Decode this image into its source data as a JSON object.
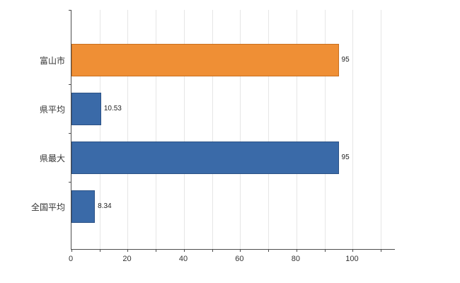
{
  "chart_data": {
    "type": "bar",
    "orientation": "horizontal",
    "title": "",
    "categories": [
      "富山市",
      "県平均",
      "県最大",
      "全国平均"
    ],
    "values": [
      95,
      10.53,
      95,
      8.34
    ],
    "value_labels": [
      "95",
      "10.53",
      "95",
      "8.34"
    ],
    "bar_colors": [
      "#ef8f35",
      "#3a6aa8",
      "#3a6aa8",
      "#3a6aa8"
    ],
    "bar_border_colors": [
      "#c96f1e",
      "#2c5286",
      "#2c5286",
      "#2c5286"
    ],
    "xlim": [
      0,
      115
    ],
    "x_tick_labels": [
      "0",
      "20",
      "40",
      "60",
      "80",
      "100"
    ],
    "x_tick_values": [
      0,
      20,
      40,
      60,
      80,
      100
    ],
    "minor_tick_step": 10,
    "grid": true,
    "legend": "none",
    "colors": {
      "axis": "#4d4d4d",
      "grid": "#e6e6e6",
      "background": "#ffffff",
      "text": "#333333"
    }
  }
}
